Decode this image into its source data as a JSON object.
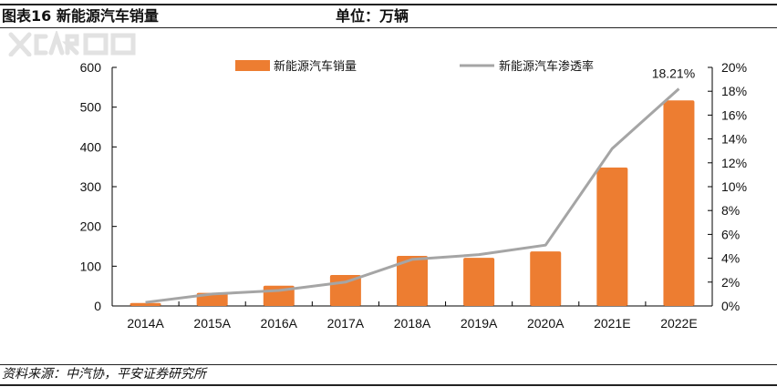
{
  "header": {
    "title": "图表16   新能源汽车销量",
    "unit": "单位：万辆"
  },
  "watermark": "XCAR爱卡",
  "footer": {
    "source": "资料来源：中汽协，平安证券研究所"
  },
  "colors": {
    "bar": "#ED7D31",
    "line": "#A5A5A5"
  },
  "chart_data": {
    "type": "bar+line",
    "categories": [
      "2014A",
      "2015A",
      "2016A",
      "2017A",
      "2018A",
      "2019A",
      "2020A",
      "2021E",
      "2022E"
    ],
    "series": [
      {
        "name": "新能源汽车销量",
        "type": "bar",
        "axis": "left",
        "values": [
          7.5,
          33,
          51,
          78,
          126,
          121,
          137,
          348,
          517
        ]
      },
      {
        "name": "新能源汽车渗透率",
        "type": "line",
        "axis": "right",
        "values": [
          0.3,
          1.0,
          1.3,
          2.0,
          3.9,
          4.3,
          5.1,
          13.2,
          18.21
        ]
      }
    ],
    "annotation": "18.21%",
    "ylim": [
      0,
      600
    ],
    "yticks": [
      "0",
      "100",
      "200",
      "300",
      "400",
      "500",
      "600"
    ],
    "y2lim": [
      0,
      20
    ],
    "y2ticks": [
      "0%",
      "2%",
      "4%",
      "6%",
      "8%",
      "10%",
      "12%",
      "14%",
      "16%",
      "18%",
      "20%"
    ],
    "legend": "top"
  }
}
